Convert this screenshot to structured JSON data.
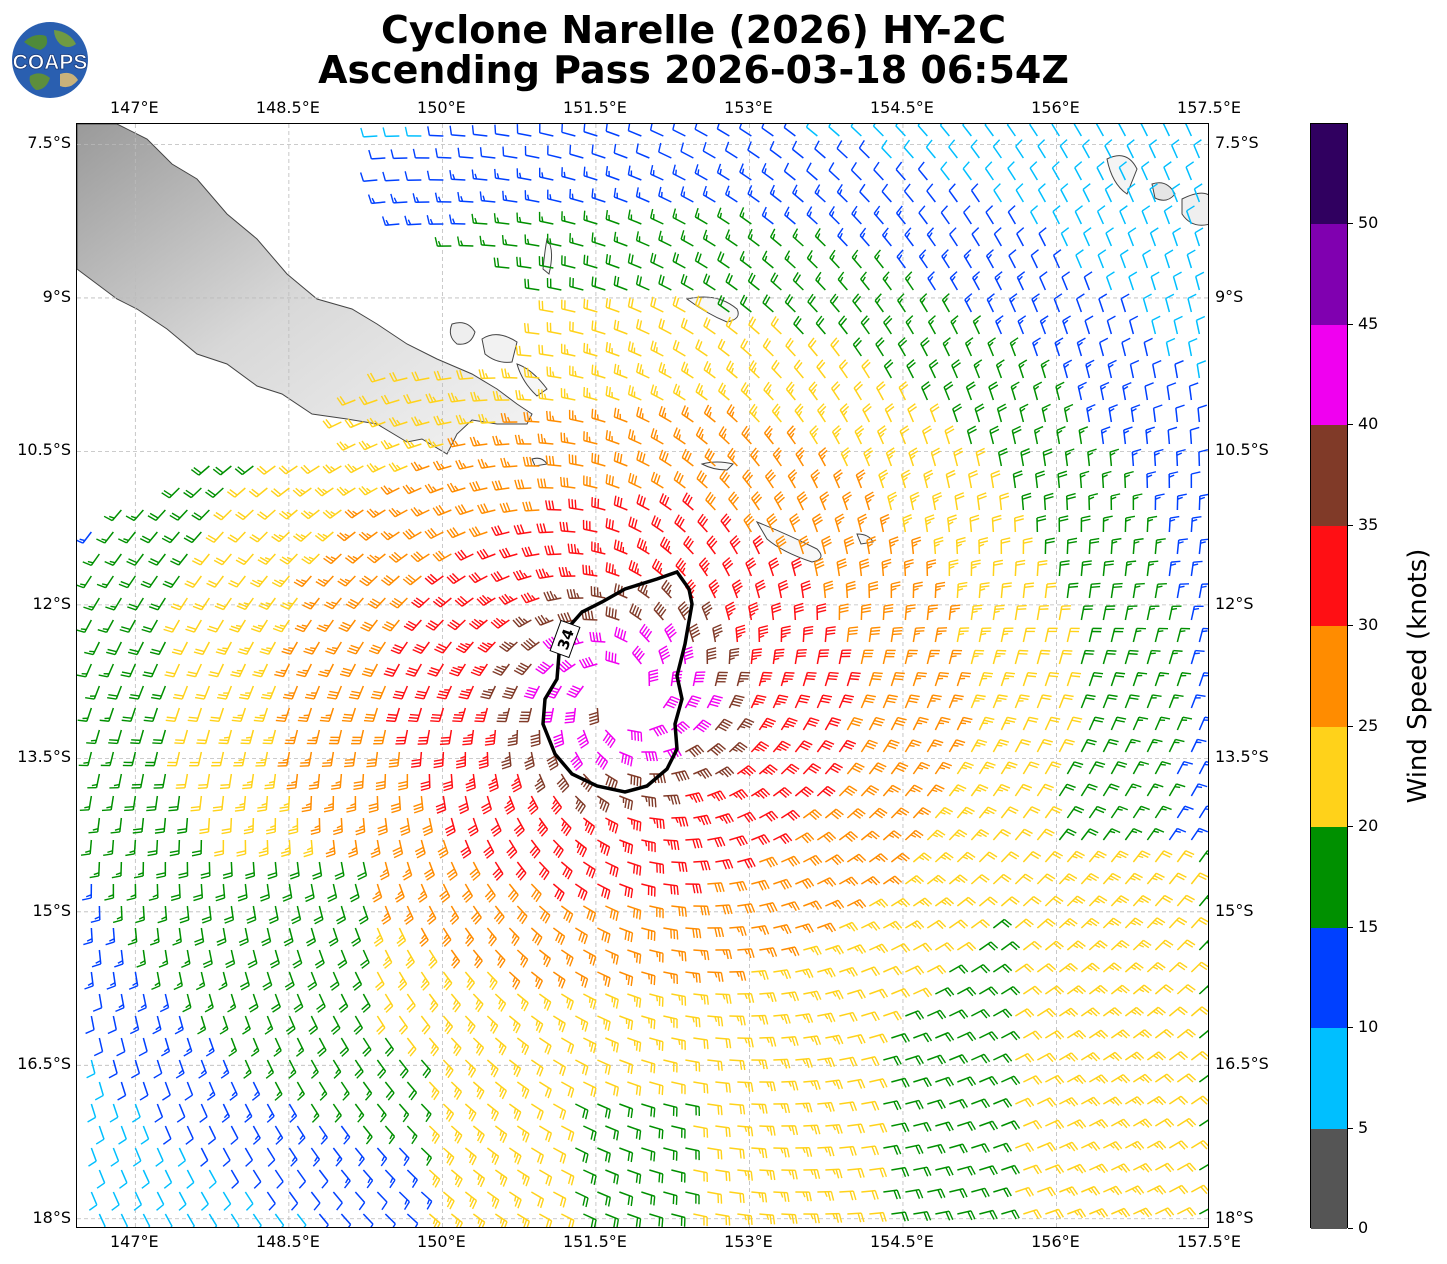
{
  "title": {
    "line1": "Cyclone Narelle (2026) HY-2C",
    "line2": "Ascending Pass 2026-03-18 06:54Z"
  },
  "logo": {
    "text": "COAPS"
  },
  "map": {
    "lon_ticks": [
      "147°E",
      "148.5°E",
      "150°E",
      "151.5°E",
      "153°E",
      "154.5°E",
      "156°E",
      "157.5°E"
    ],
    "lat_ticks": [
      "7.5°S",
      "9°S",
      "10.5°S",
      "12°S",
      "13.5°S",
      "15°S",
      "16.5°S",
      "18°S"
    ],
    "contour_label": "34",
    "center": {
      "lon": 151.75,
      "lat": -12.9
    }
  },
  "colorbar": {
    "label": "Wind Speed (knots)",
    "ticks": [
      "0",
      "5",
      "10",
      "15",
      "20",
      "25",
      "30",
      "35",
      "40",
      "45",
      "50"
    ],
    "bins": [
      {
        "min": 0,
        "max": 5,
        "color": "#555555"
      },
      {
        "min": 5,
        "max": 10,
        "color": "#00bfff"
      },
      {
        "min": 10,
        "max": 15,
        "color": "#0040ff"
      },
      {
        "min": 15,
        "max": 20,
        "color": "#009000"
      },
      {
        "min": 20,
        "max": 25,
        "color": "#ffd21a"
      },
      {
        "min": 25,
        "max": 30,
        "color": "#ff8c00"
      },
      {
        "min": 30,
        "max": 35,
        "color": "#ff0f14"
      },
      {
        "min": 35,
        "max": 40,
        "color": "#803a28"
      },
      {
        "min": 40,
        "max": 45,
        "color": "#f000f0"
      },
      {
        "min": 45,
        "max": 50,
        "color": "#8000b0"
      },
      {
        "min": 50,
        "max": 55,
        "color": "#300060"
      }
    ]
  }
}
